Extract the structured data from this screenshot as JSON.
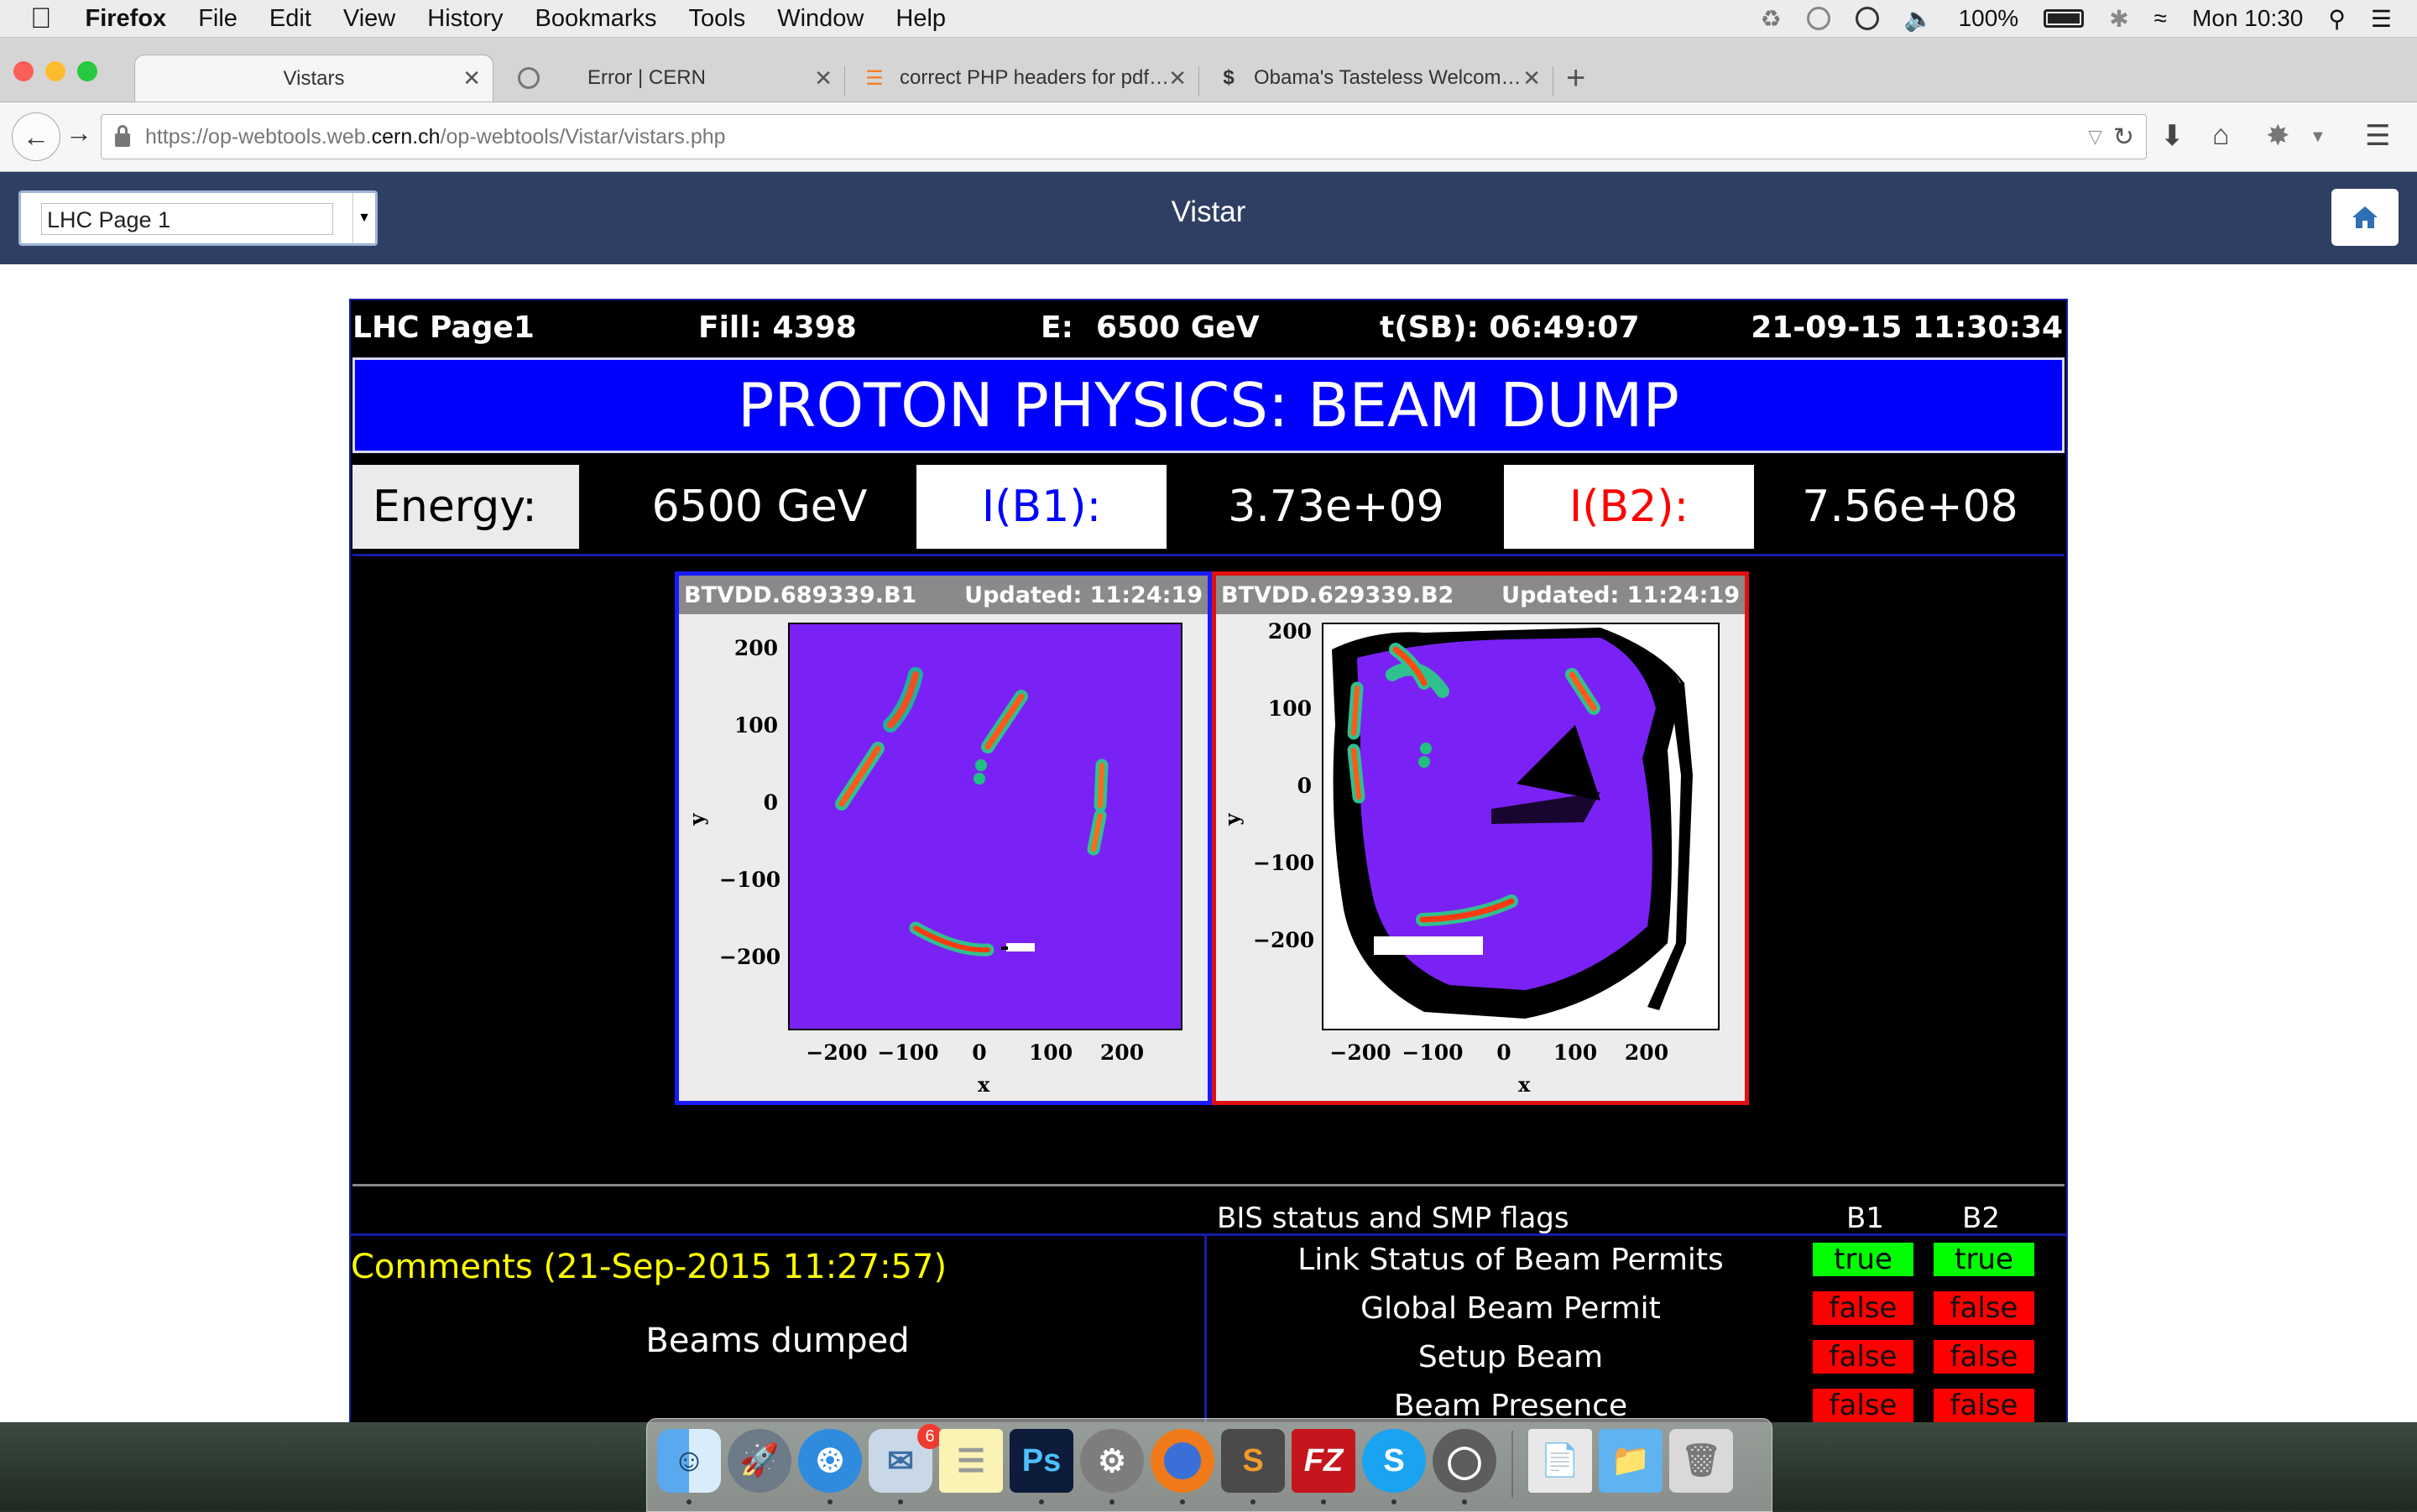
{
  "menubar": {
    "app": "Firefox",
    "items": [
      "File",
      "Edit",
      "View",
      "History",
      "Bookmarks",
      "Tools",
      "Window",
      "Help"
    ],
    "battery": "100%",
    "clock": "Mon 10:30"
  },
  "tabs": [
    {
      "title": "Vistars"
    },
    {
      "title": "Error | CERN"
    },
    {
      "title": "correct PHP headers for pdf…"
    },
    {
      "title": "Obama's Tasteless Welcom…"
    }
  ],
  "url": {
    "prefix": "https://op-webtools.web.",
    "host": "cern.ch",
    "path": "/op-webtools/Vistar/vistars.php"
  },
  "vistar": {
    "select_value": "LHC Page 1",
    "title": "Vistar"
  },
  "panel": {
    "page": "LHC Page1",
    "fill": "Fill: 4398",
    "energy_label": "E:",
    "energy_value": "6500 GeV",
    "tsb": "t(SB): 06:49:07",
    "datetime": "21-09-15 11:30:34",
    "banner": "PROTON PHYSICS: BEAM DUMP",
    "energy_cell_label": "Energy:",
    "energy_cell_value": "6500 GeV",
    "ib1_label": "I(B1):",
    "ib1_value": "3.73e+09",
    "ib2_label": "I(B2):",
    "ib2_value": "7.56e+08"
  },
  "cameras": [
    {
      "name": "BTVDD.689339.B1",
      "updated": "Updated: 11:24:19",
      "border": "#1a1aff",
      "xlabel": "x",
      "ylabel": "y",
      "xticks": [
        "−200",
        "−100",
        "0",
        "100",
        "200"
      ],
      "yticks": [
        "200",
        "100",
        "0",
        "−100",
        "−200"
      ]
    },
    {
      "name": "BTVDD.629339.B2",
      "updated": "Updated: 11:24:19",
      "border": "#e01010",
      "xlabel": "x",
      "ylabel": "y",
      "xticks": [
        "−200",
        "−100",
        "0",
        "100",
        "200"
      ],
      "yticks": [
        "200",
        "100",
        "0",
        "−100",
        "−200"
      ]
    }
  ],
  "bis": {
    "title": "BIS status and SMP flags",
    "col_b1": "B1",
    "col_b2": "B2",
    "rows": [
      {
        "label": "Link Status of Beam Permits",
        "b1": "true",
        "b2": "true"
      },
      {
        "label": "Global Beam Permit",
        "b1": "false",
        "b2": "false"
      },
      {
        "label": "Setup Beam",
        "b1": "false",
        "b2": "false"
      },
      {
        "label": "Beam Presence",
        "b1": "false",
        "b2": "false"
      }
    ]
  },
  "comments": {
    "title": "Comments (21-Sep-2015 11:27:57)",
    "text": "Beams dumped"
  },
  "dock": {
    "mail_badge": "6",
    "apps": [
      "finder-icon",
      "launchpad-icon",
      "safari-icon",
      "mail-icon",
      "notes-icon",
      "photoshop-icon",
      "system-preferences-icon",
      "firefox-icon",
      "sublime-text-icon",
      "filezilla-icon",
      "skype-icon",
      "sequel-pro-icon",
      "documents-icon",
      "downloads-folder-icon",
      "trash-icon"
    ]
  }
}
